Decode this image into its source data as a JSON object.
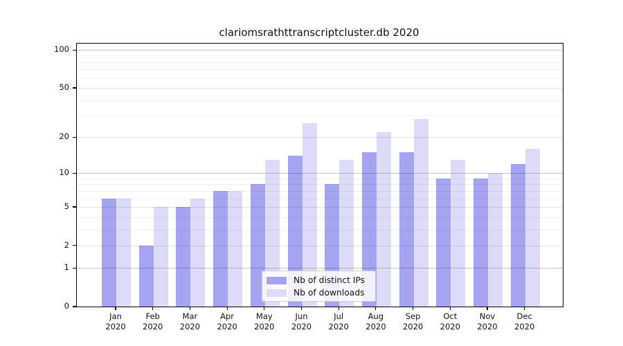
{
  "title": "clariomsrathttranscriptcluster.db 2020",
  "colors": {
    "bar_ips": "#a4a4f0",
    "bar_downloads": "#dcdcf8",
    "grid_major": "#c7c7c7",
    "grid_mid": "#e3e3e3",
    "grid_minor": "#f1f1f1",
    "axis": "#000000"
  },
  "legend": {
    "items": [
      {
        "label": "Nb of distinct IPs",
        "color": "#a4a4f0"
      },
      {
        "label": "Nb of downloads",
        "color": "#dcdcf8"
      }
    ]
  },
  "chart_data": {
    "type": "bar",
    "title": "clariomsrathttranscriptcluster.db 2020",
    "categories": [
      "Jan 2020",
      "Feb 2020",
      "Mar 2020",
      "Apr 2020",
      "May 2020",
      "Jun 2020",
      "Jul 2020",
      "Aug 2020",
      "Sep 2020",
      "Oct 2020",
      "Nov 2020",
      "Dec 2020"
    ],
    "series": [
      {
        "name": "Nb of distinct IPs",
        "color": "#a4a4f0",
        "values": [
          6,
          2,
          5,
          7,
          8,
          14,
          8,
          15,
          15,
          9,
          9,
          12
        ]
      },
      {
        "name": "Nb of downloads",
        "color": "#dcdcf8",
        "values": [
          6,
          5,
          6,
          7,
          13,
          26,
          13,
          22,
          28,
          13,
          10,
          16
        ]
      }
    ],
    "xlabel": "",
    "ylabel": "",
    "yscale": "log1p",
    "ylim": [
      0,
      101
    ],
    "yticks_labeled": [
      0,
      1,
      2,
      5,
      10,
      20,
      50,
      100
    ],
    "yticks_power_major": [
      1,
      10,
      100
    ],
    "yticks_minor": [
      3,
      4,
      6,
      7,
      8,
      9,
      30,
      40,
      60,
      70,
      80,
      90
    ],
    "grid": "on",
    "legend_position": "lower center"
  }
}
